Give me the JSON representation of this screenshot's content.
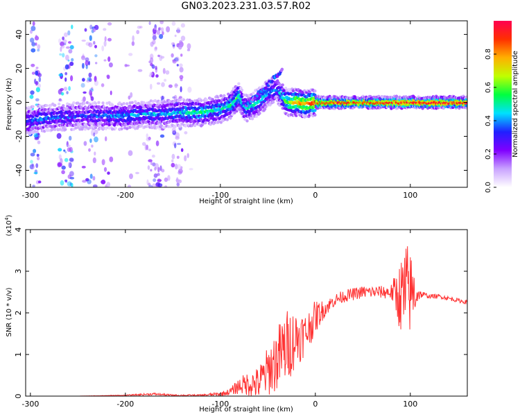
{
  "title": "GN03.2023.231.03.57.R02",
  "spectrogram": {
    "xlabel": "Height of straight line (km)",
    "ylabel": "Frequency (Hz)",
    "xlim": [
      -305,
      160
    ],
    "ylim": [
      -50,
      48
    ],
    "xticks": [
      -300,
      -200,
      -100,
      0,
      100
    ],
    "yticks": [
      -40,
      -20,
      0,
      20,
      40
    ],
    "colorbar": {
      "label": "Normalized spectral amplitude",
      "range": [
        0,
        1
      ],
      "ticks": [
        "0.0",
        "0.2",
        "0.4",
        "0.6",
        "0.8"
      ],
      "tick_values": [
        0.0,
        0.2,
        0.4,
        0.6,
        0.8
      ],
      "colors": [
        "#ffffff",
        "#c9a3ff",
        "#8000ff",
        "#2020ff",
        "#00e0ff",
        "#00ff40",
        "#c0ff00",
        "#ffb000",
        "#ff3000",
        "#ff0050"
      ]
    }
  },
  "chart_data": [
    {
      "type": "heatmap",
      "xlabel": "Height of straight line (km)",
      "ylabel": "Frequency (Hz)",
      "xlim": [
        -305,
        160
      ],
      "ylim": [
        -50,
        48
      ],
      "ridge": {
        "x": [
          -305,
          -280,
          -250,
          -220,
          -200,
          -180,
          -160,
          -140,
          -120,
          -100,
          -90,
          -80,
          -75,
          -70,
          -60,
          -50,
          -40,
          -30,
          -20,
          -10,
          0,
          20,
          40,
          60,
          80,
          95,
          100,
          120,
          140,
          160
        ],
        "freq": [
          -11,
          -9,
          -8,
          -8,
          -8,
          -7,
          -7,
          -6,
          -6,
          -4,
          -2,
          4,
          -3,
          -3,
          0,
          5,
          8,
          0,
          0,
          -1,
          0,
          0,
          0,
          0,
          0,
          0,
          0,
          0,
          0,
          0
        ],
        "amplitude": [
          0.35,
          0.35,
          0.3,
          0.35,
          0.4,
          0.4,
          0.4,
          0.45,
          0.5,
          0.45,
          0.5,
          0.55,
          0.4,
          0.45,
          0.45,
          0.4,
          0.35,
          0.6,
          0.75,
          0.8,
          0.85,
          0.9,
          0.9,
          0.9,
          0.9,
          0.95,
          0.95,
          0.95,
          0.95,
          0.95
        ]
      }
    },
    {
      "type": "line",
      "xlabel": "Height of straight line (km)",
      "ylabel": "SNR (10 * v/v)",
      "y_multiplier_label": "(x10^4)",
      "xlim": [
        -305,
        160
      ],
      "ylim": [
        0,
        4
      ],
      "xticks": [
        -300,
        -200,
        -100,
        0,
        100
      ],
      "yticks": [
        0,
        1,
        2,
        3,
        4
      ],
      "color": "#ff3030",
      "series": [
        {
          "x": [
            -305,
            -250,
            -200,
            -170,
            -150,
            -120,
            -100,
            -90,
            -80,
            -70,
            -60,
            -50,
            -40,
            -30,
            -20,
            -10,
            0,
            10,
            20,
            30,
            40,
            50,
            60,
            70,
            80,
            90,
            95,
            100,
            110,
            120,
            130,
            140,
            150,
            160
          ],
          "values": [
            0.0,
            0.0,
            0.02,
            0.05,
            0.02,
            0.02,
            0.05,
            0.1,
            0.25,
            0.3,
            0.3,
            0.6,
            0.9,
            1.2,
            1.4,
            1.5,
            1.9,
            2.1,
            2.3,
            2.4,
            2.45,
            2.5,
            2.5,
            2.5,
            2.5,
            2.4,
            2.4,
            2.5,
            2.45,
            2.4,
            2.4,
            2.35,
            2.3,
            2.25
          ],
          "noise": [
            0.0,
            0.0,
            0.01,
            0.03,
            0.02,
            0.02,
            0.05,
            0.08,
            0.2,
            0.3,
            0.4,
            0.6,
            0.8,
            0.9,
            0.7,
            0.5,
            0.4,
            0.2,
            0.15,
            0.15,
            0.15,
            0.15,
            0.15,
            0.15,
            0.2,
            0.9,
            1.4,
            1.0,
            0.1,
            0.05,
            0.05,
            0.05,
            0.05,
            0.05
          ]
        }
      ]
    }
  ],
  "snr": {
    "xlabel": "Height of straight line (km)",
    "ylabel": "SNR (10 * v/v)",
    "multiplier": "(x10",
    "multiplier_exp": "4",
    "multiplier_close": ")",
    "xticks": [
      -300,
      -200,
      -100,
      0,
      100
    ],
    "yticks": [
      0,
      1,
      2,
      3,
      4
    ]
  }
}
